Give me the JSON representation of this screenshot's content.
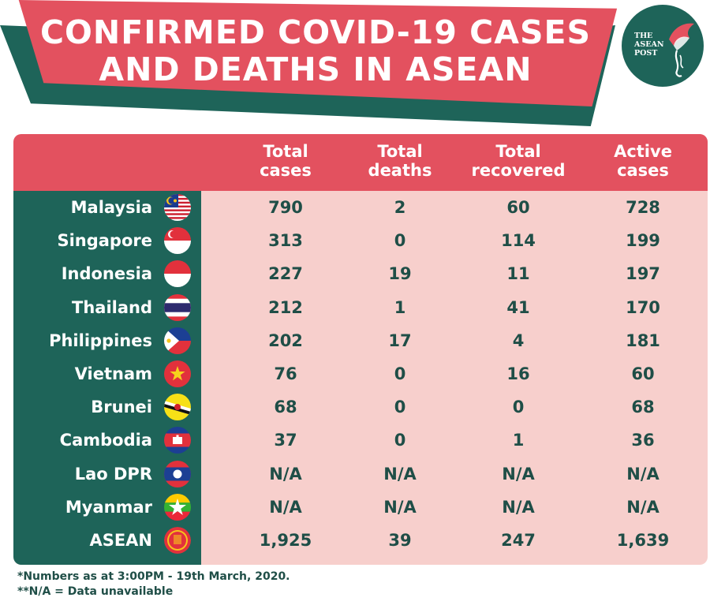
{
  "header": {
    "title_line1": "CONFIRMED COVID-19 CASES",
    "title_line2": "AND DEATHS IN ASEAN",
    "logo_line1": "THE",
    "logo_line2": "ASEAN",
    "logo_line3": "POST"
  },
  "colors": {
    "red": "#e3515f",
    "green": "#1e6459",
    "pink": "#f7cfcc",
    "dark_text": "#1f4e47"
  },
  "chart_data": {
    "type": "table",
    "title": "CONFIRMED COVID-19 CASES AND DEATHS IN ASEAN",
    "columns": [
      "Total cases",
      "Total deaths",
      "Total recovered",
      "Active cases"
    ],
    "rows": [
      {
        "country": "Malaysia",
        "flag": "malaysia-flag-icon",
        "values": [
          "790",
          "2",
          "60",
          "728"
        ]
      },
      {
        "country": "Singapore",
        "flag": "singapore-flag-icon",
        "values": [
          "313",
          "0",
          "114",
          "199"
        ]
      },
      {
        "country": "Indonesia",
        "flag": "indonesia-flag-icon",
        "values": [
          "227",
          "19",
          "11",
          "197"
        ]
      },
      {
        "country": "Thailand",
        "flag": "thailand-flag-icon",
        "values": [
          "212",
          "1",
          "41",
          "170"
        ]
      },
      {
        "country": "Philippines",
        "flag": "philippines-flag-icon",
        "values": [
          "202",
          "17",
          "4",
          "181"
        ]
      },
      {
        "country": "Vietnam",
        "flag": "vietnam-flag-icon",
        "values": [
          "76",
          "0",
          "16",
          "60"
        ]
      },
      {
        "country": "Brunei",
        "flag": "brunei-flag-icon",
        "values": [
          "68",
          "0",
          "0",
          "68"
        ]
      },
      {
        "country": "Cambodia",
        "flag": "cambodia-flag-icon",
        "values": [
          "37",
          "0",
          "1",
          "36"
        ]
      },
      {
        "country": "Lao DPR",
        "flag": "laos-flag-icon",
        "values": [
          "N/A",
          "N/A",
          "N/A",
          "N/A"
        ]
      },
      {
        "country": "Myanmar",
        "flag": "myanmar-flag-icon",
        "values": [
          "N/A",
          "N/A",
          "N/A",
          "N/A"
        ]
      },
      {
        "country": "ASEAN",
        "flag": "asean-emblem-icon",
        "values": [
          "1,925",
          "39",
          "247",
          "1,639"
        ]
      }
    ]
  },
  "footnotes": {
    "line1": "*Numbers as at 3:00PM - 19th March, 2020.",
    "line2": "**N/A = Data unavailable"
  }
}
